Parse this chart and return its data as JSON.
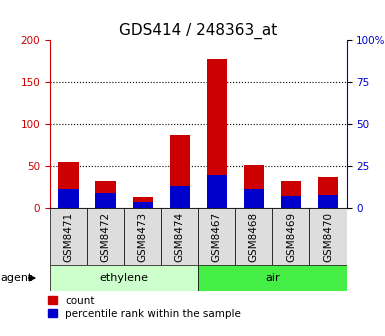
{
  "title": "GDS414 / 248363_at",
  "samples": [
    "GSM8471",
    "GSM8472",
    "GSM8473",
    "GSM8474",
    "GSM8467",
    "GSM8468",
    "GSM8469",
    "GSM8470"
  ],
  "count_values": [
    55,
    33,
    14,
    87,
    178,
    51,
    32,
    37
  ],
  "percentile_values": [
    23,
    18,
    8,
    27,
    40,
    23,
    15,
    16
  ],
  "groups": [
    {
      "label": "ethylene",
      "start": 0,
      "end": 4,
      "color": "#ccffcc"
    },
    {
      "label": "air",
      "start": 4,
      "end": 8,
      "color": "#44ee44"
    }
  ],
  "group_label": "agent",
  "left_ylim": [
    0,
    200
  ],
  "right_ylim": [
    0,
    100
  ],
  "left_yticks": [
    0,
    50,
    100,
    150,
    200
  ],
  "right_yticks": [
    0,
    25,
    50,
    75,
    100
  ],
  "right_yticklabels": [
    "0",
    "25",
    "50",
    "75",
    "100%"
  ],
  "left_color": "#cc0000",
  "right_color": "#0000cc",
  "bar_color_red": "#cc0000",
  "bar_color_blue": "#0000cc",
  "legend_count": "count",
  "legend_percentile": "percentile rank within the sample",
  "grid_color": "#000000",
  "title_fontsize": 11,
  "tick_fontsize": 7.5,
  "bar_width": 0.55,
  "xtick_gray": "#dddddd",
  "spine_bottom_color": "#000000"
}
